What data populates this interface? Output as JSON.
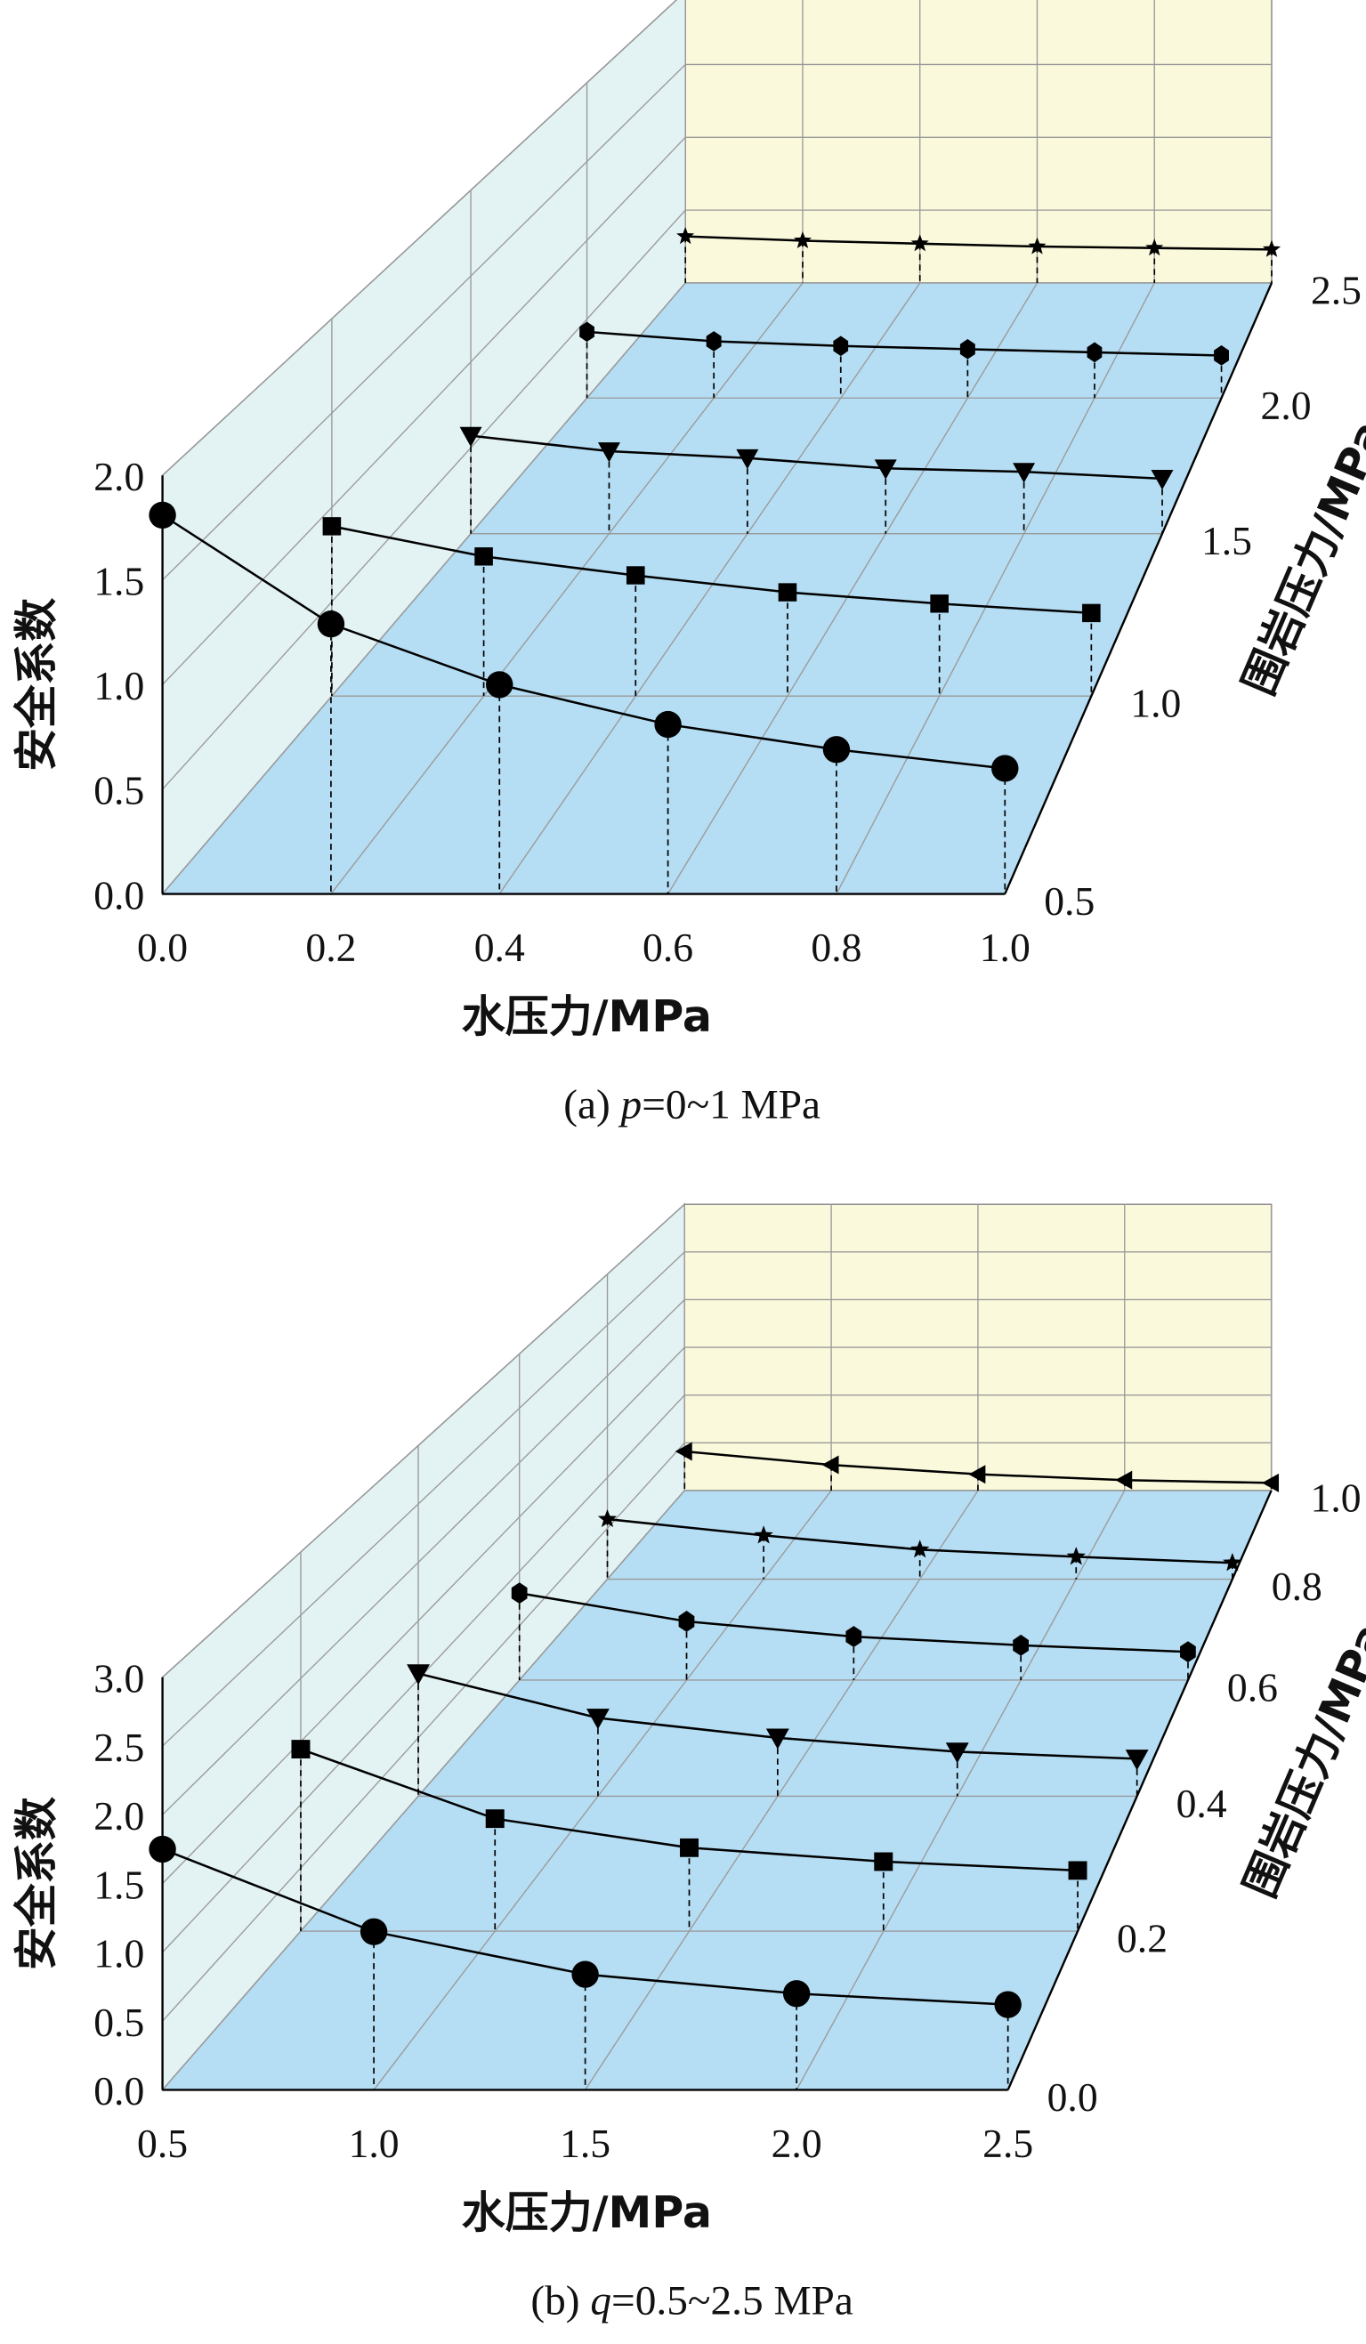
{
  "chart_data": [
    {
      "type": "line",
      "projection": "3d",
      "caption_prefix": "(a) ",
      "caption_var": "p",
      "caption_rest": "=0~1 MPa",
      "xlabel": "水压力/MPa",
      "ylabel": "安全系数",
      "zlabel": "围岩压力/MPa",
      "xlim": [
        0,
        1.0
      ],
      "ylim": [
        0,
        2.0
      ],
      "zlim": [
        0.5,
        2.5
      ],
      "xticks": [
        "0.0",
        "0.2",
        "0.4",
        "0.6",
        "0.8",
        "1.0"
      ],
      "yticks": [
        "0.0",
        "0.5",
        "1.0",
        "1.5",
        "2.0"
      ],
      "zticks": [
        "0.5",
        "1.0",
        "1.5",
        "2.0",
        "2.5"
      ],
      "x": [
        0,
        0.2,
        0.4,
        0.6,
        0.8,
        1.0
      ],
      "series": [
        {
          "name": "0.5",
          "depth": 0.5,
          "marker": "circle",
          "values": [
            1.81,
            1.29,
            1.0,
            0.81,
            0.69,
            0.6
          ]
        },
        {
          "name": "1.0",
          "depth": 1.0,
          "marker": "square",
          "values": [
            0.9,
            0.74,
            0.64,
            0.55,
            0.49,
            0.44
          ]
        },
        {
          "name": "1.5",
          "depth": 1.5,
          "marker": "triangle-down",
          "values": [
            0.57,
            0.48,
            0.44,
            0.38,
            0.36,
            0.32
          ]
        },
        {
          "name": "2.0",
          "depth": 2.0,
          "marker": "hexagon",
          "values": [
            0.42,
            0.36,
            0.33,
            0.31,
            0.29,
            0.27
          ]
        },
        {
          "name": "2.5",
          "depth": 2.5,
          "marker": "star",
          "values": [
            0.32,
            0.29,
            0.27,
            0.25,
            0.24,
            0.23
          ]
        }
      ]
    },
    {
      "type": "line",
      "projection": "3d",
      "caption_prefix": "(b) ",
      "caption_var": "q",
      "caption_rest": "=0.5~2.5 MPa",
      "xlabel": "水压力/MPa",
      "ylabel": "安全系数",
      "zlabel": "围岩压力/MPa",
      "xlim": [
        0.5,
        2.5
      ],
      "ylim": [
        0,
        3.0
      ],
      "zlim": [
        0,
        1.0
      ],
      "xticks": [
        "0.5",
        "1.0",
        "1.5",
        "2.0",
        "2.5"
      ],
      "yticks": [
        "0.0",
        "0.5",
        "1.0",
        "1.5",
        "2.0",
        "2.5",
        "3.0"
      ],
      "zticks": [
        "0.0",
        "0.2",
        "0.4",
        "0.6",
        "0.8",
        "1.0"
      ],
      "x": [
        0.5,
        1.0,
        1.5,
        2.0,
        2.5
      ],
      "series": [
        {
          "name": "0.0",
          "depth": 0.0,
          "marker": "circle",
          "values": [
            1.75,
            1.15,
            0.84,
            0.7,
            0.62
          ]
        },
        {
          "name": "0.2",
          "depth": 0.2,
          "marker": "square",
          "values": [
            1.44,
            0.89,
            0.66,
            0.55,
            0.48
          ]
        },
        {
          "name": "0.4",
          "depth": 0.4,
          "marker": "triangle-down",
          "values": [
            1.05,
            0.67,
            0.5,
            0.38,
            0.32
          ]
        },
        {
          "name": "0.6",
          "depth": 0.6,
          "marker": "hexagon",
          "values": [
            0.8,
            0.54,
            0.4,
            0.32,
            0.26
          ]
        },
        {
          "name": "0.8",
          "depth": 0.8,
          "marker": "star",
          "values": [
            0.59,
            0.43,
            0.29,
            0.22,
            0.16
          ]
        },
        {
          "name": "1.0",
          "depth": 1.0,
          "marker": "triangle-left",
          "values": [
            0.41,
            0.27,
            0.17,
            0.11,
            0.08
          ]
        }
      ]
    }
  ],
  "colors": {
    "floor": "#b5ddf3",
    "left_wall": "#e3f2f3",
    "back_wall": "#fbf9dc",
    "grid": "#9a9a9a",
    "line": "#000000"
  }
}
